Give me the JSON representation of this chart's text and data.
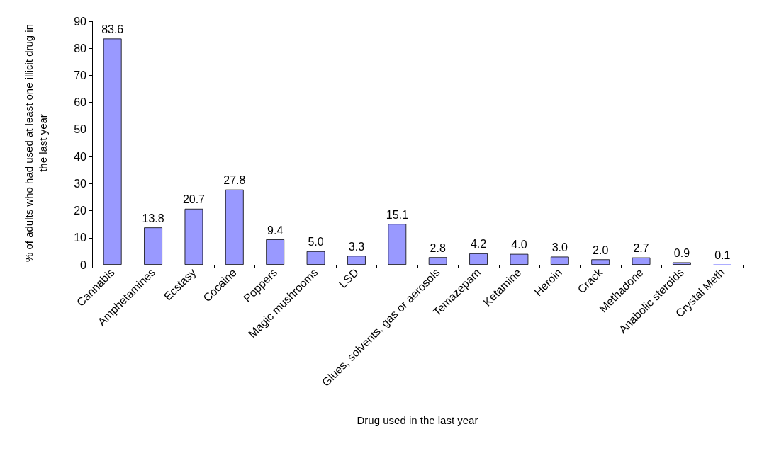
{
  "chart_data": {
    "type": "bar",
    "xlabel": "Drug used in the last year",
    "ylabel": "% of adults who had used at least one illicit drug in the last year",
    "categories": [
      "Cannabis",
      "Amphetamines",
      "Ecstasy",
      "Cocaine",
      "Poppers",
      "Magic mushrooms",
      "LSD",
      null,
      "Glues, solvents, gas or aerosols",
      "Temazepam",
      "Ketamine",
      "Heroin",
      "Crack",
      "Methadone",
      "Anabolic steroids",
      "Crystal Meth"
    ],
    "values": [
      83.6,
      13.8,
      20.7,
      27.8,
      9.4,
      5.0,
      3.3,
      15.1,
      2.8,
      4.2,
      4.0,
      3.0,
      2.0,
      2.7,
      0.9,
      0.1
    ],
    "value_labels": [
      "83.6",
      "13.8",
      "20.7",
      "27.8",
      "9.4",
      "5.0",
      "3.3",
      "15.1",
      "2.8",
      "4.2",
      "4.0",
      "3.0",
      "2.0",
      "2.7",
      "0.9",
      "0.1"
    ],
    "color": "#9999ff",
    "ylim": [
      0,
      90
    ],
    "yticks": [
      0,
      10,
      20,
      30,
      40,
      50,
      60,
      70,
      80,
      90
    ],
    "grid": false
  }
}
